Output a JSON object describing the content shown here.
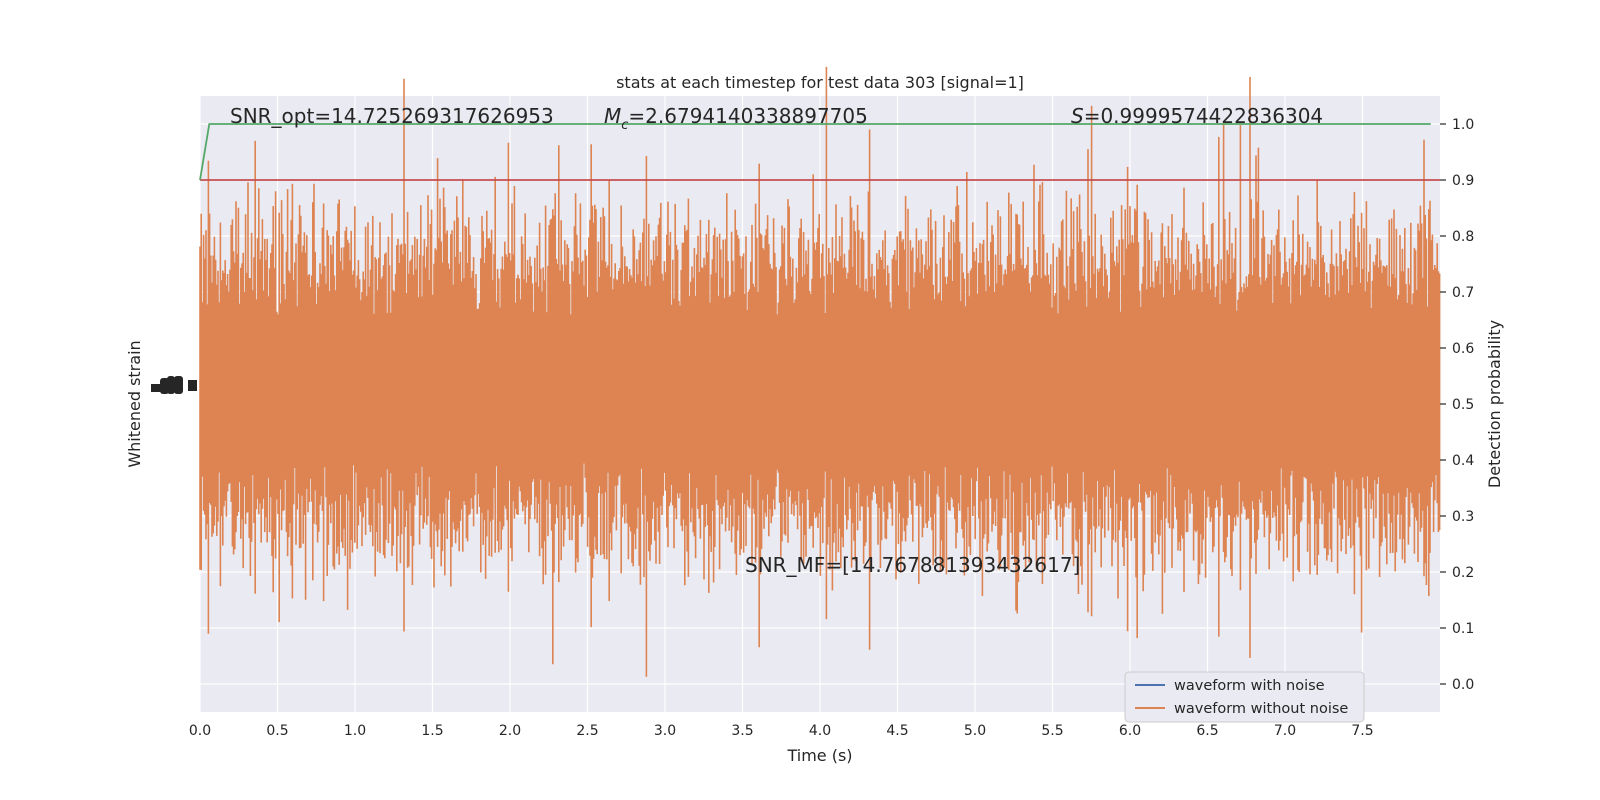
{
  "chart_data": {
    "type": "line",
    "title": "stats at each timestep for test data 303 [signal=1]",
    "xlabel": "Time (s)",
    "ylabel_left": "Whitened strain",
    "ylabel_right": "Detection probability",
    "xlim": [
      0.0,
      8.0
    ],
    "ylim_right": [
      -0.05,
      1.05
    ],
    "x_ticks": [
      "0.0",
      "0.5",
      "1.0",
      "1.5",
      "2.0",
      "2.5",
      "3.0",
      "3.5",
      "4.0",
      "4.5",
      "5.0",
      "5.5",
      "6.0",
      "6.5",
      "7.0",
      "7.5"
    ],
    "y_ticks_right": [
      "0.0",
      "0.1",
      "0.2",
      "0.3",
      "0.4",
      "0.5",
      "0.6",
      "0.7",
      "0.8",
      "0.9",
      "1.0"
    ],
    "grid": true,
    "legend_position": "lower-right",
    "series": [
      {
        "name": "waveform with noise",
        "color": "#4c72b0"
      },
      {
        "name": "waveform without noise",
        "color": "#dd8452"
      }
    ],
    "lines": {
      "probability": {
        "color": "#55a868",
        "x": [
          0.0,
          0.06,
          7.94
        ],
        "y": [
          0.9,
          1.0,
          1.0
        ]
      },
      "threshold": {
        "color": "#c44e52",
        "y": 0.9
      }
    },
    "annotations": {
      "snr_opt": "SNR_opt=14.725269317626953",
      "mc_symbol": "M",
      "mc_sub": "c",
      "mc_value": "=2.6794140338897705",
      "s_symbol": "S",
      "s_value": "=0.9999574422836304",
      "snr_mf": "SNR_MF=[14.767881393432617]"
    }
  }
}
